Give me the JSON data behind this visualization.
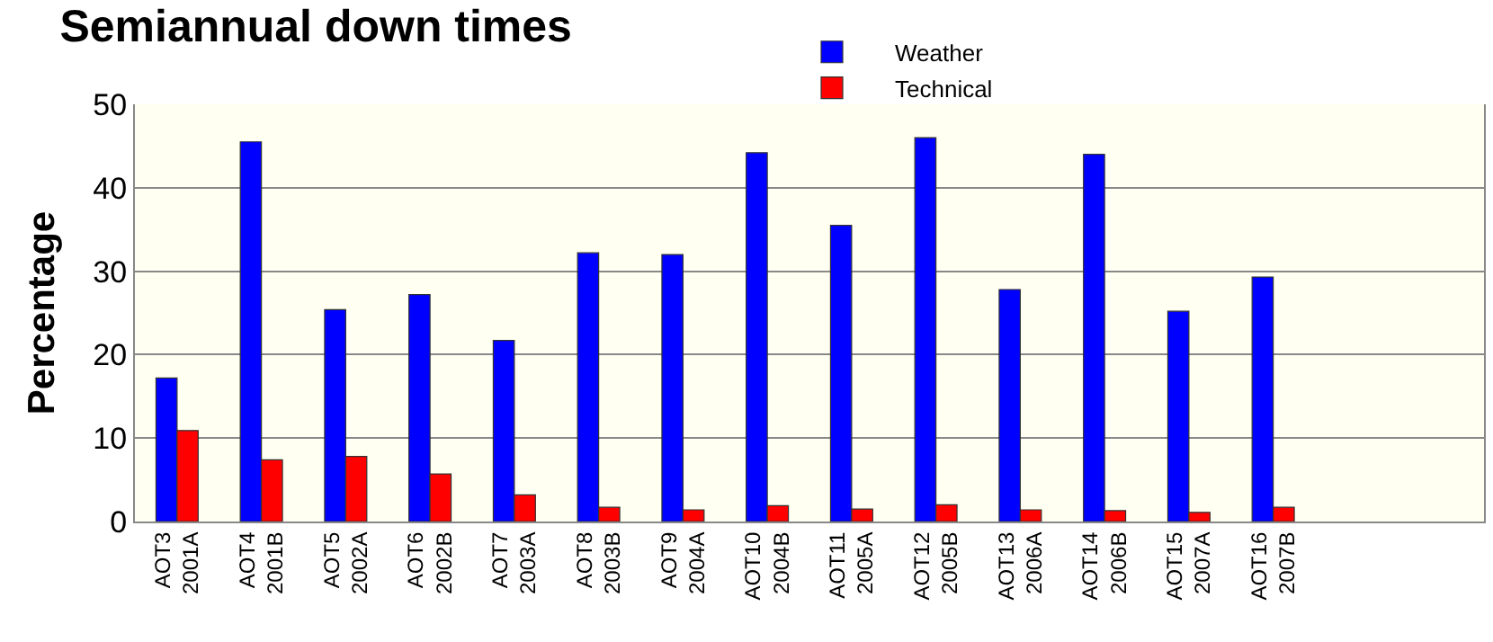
{
  "chart_data": {
    "type": "bar",
    "title": "Semiannual down times",
    "ylabel": "Percentage",
    "categories": [
      "AOT3\n2001A",
      "AOT4\n2001B",
      "AOT5\n2002A",
      "AOT6\n2002B",
      "AOT7\n2003A",
      "AOT8\n2003B",
      "AOT9\n2004A",
      "AOT10\n2004B",
      "AOT11\n2005A",
      "AOT12\n2005B",
      "AOT13\n2006A",
      "AOT14\n2006B",
      "AOT15\n2007A",
      "AOT16\n2007B"
    ],
    "series": [
      {
        "name": "Weather",
        "color": "#0000ff",
        "values": [
          17.2,
          45.5,
          25.4,
          27.2,
          21.7,
          32.2,
          32.0,
          44.2,
          35.5,
          46.0,
          27.8,
          44.0,
          25.2,
          29.3
        ]
      },
      {
        "name": "Technical",
        "color": "#ff0000",
        "values": [
          10.9,
          7.4,
          7.8,
          5.7,
          3.2,
          1.7,
          1.4,
          1.9,
          1.5,
          2.0,
          1.4,
          1.3,
          1.1,
          1.7
        ]
      }
    ],
    "ylim": [
      0,
      50
    ],
    "yticks": [
      0,
      10,
      20,
      30,
      40,
      50
    ],
    "grid": "y",
    "legend": "top"
  }
}
